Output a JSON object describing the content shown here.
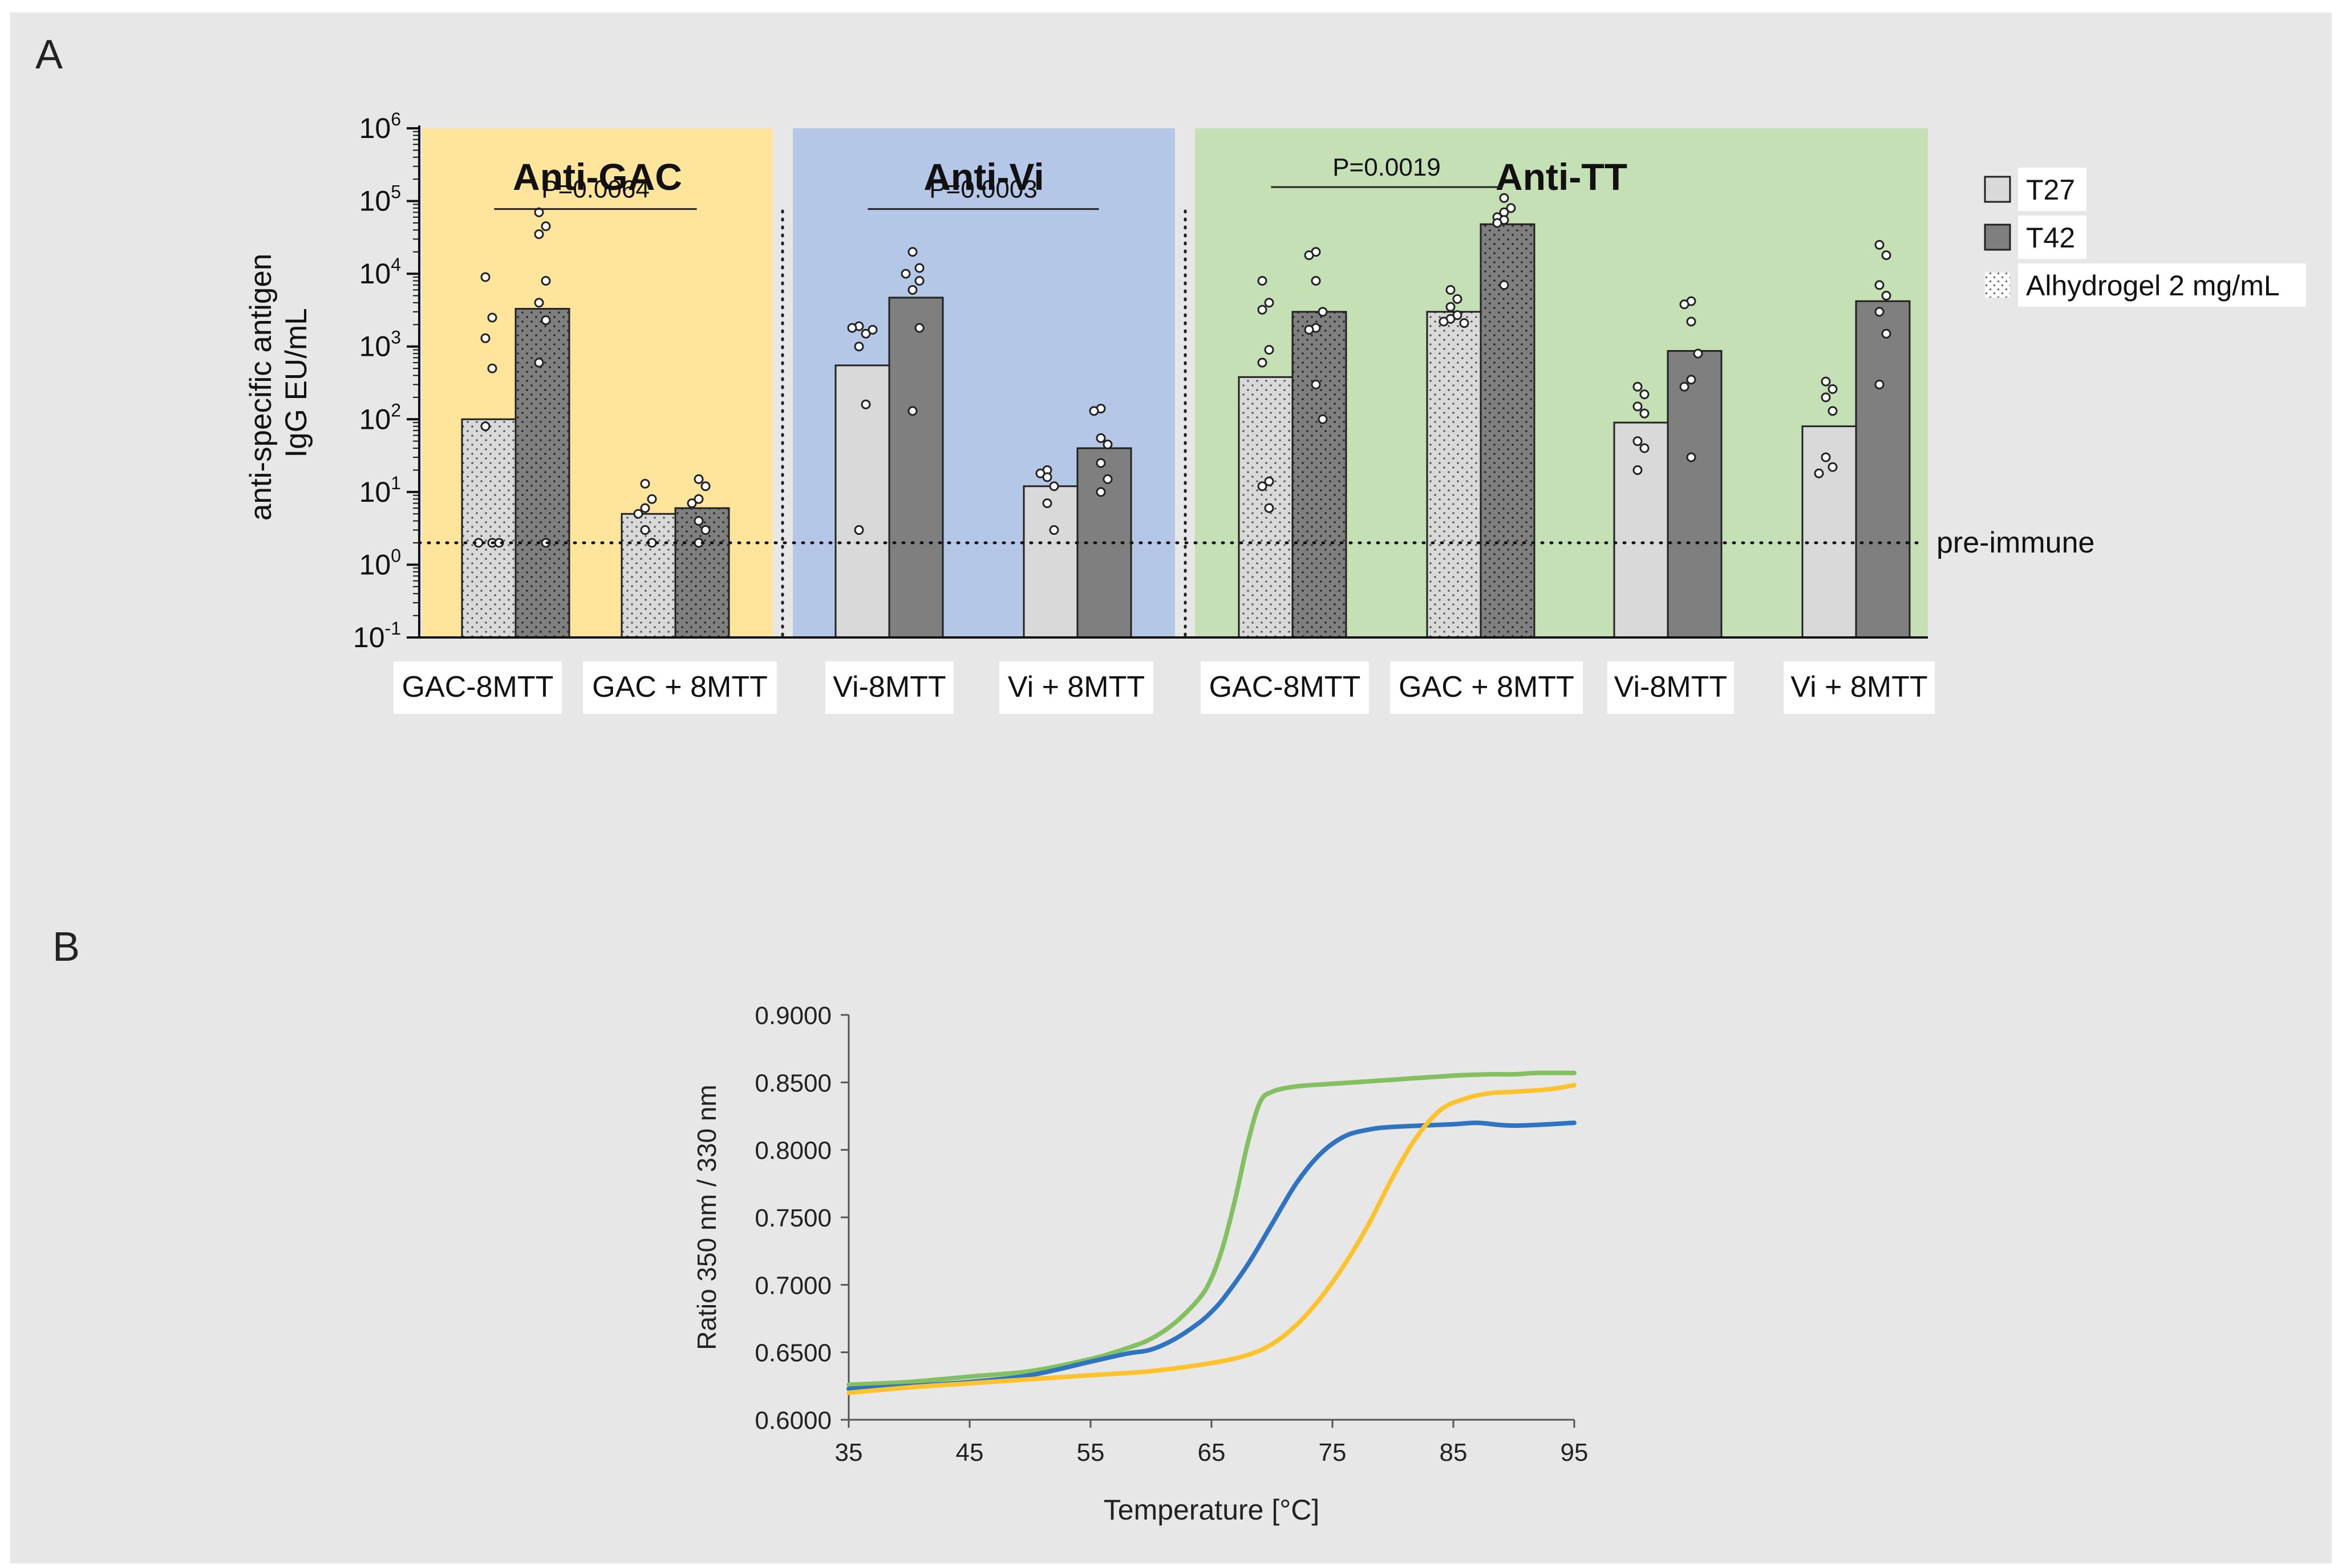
{
  "panel_a_label": "A",
  "panel_b_label": "B",
  "chart_data": [
    {
      "type": "bar",
      "id": "panel-a",
      "scale": "log",
      "ylabel_lines": [
        "anti-specific antigen",
        "IgG EU/mL"
      ],
      "ylim": [
        0.1,
        1000000
      ],
      "yticks": [
        {
          "value": 1000000,
          "base": "10",
          "exp": "6"
        },
        {
          "value": 100000,
          "base": "10",
          "exp": "5"
        },
        {
          "value": 10000,
          "base": "10",
          "exp": "4"
        },
        {
          "value": 1000,
          "base": "10",
          "exp": "3"
        },
        {
          "value": 100,
          "base": "10",
          "exp": "2"
        },
        {
          "value": 10,
          "base": "10",
          "exp": "1"
        },
        {
          "value": 1,
          "base": "10",
          "exp": "0"
        },
        {
          "value": 0.1,
          "base": "10",
          "exp": "-1"
        }
      ],
      "reference_line": {
        "value": 2,
        "label": "pre-immune"
      },
      "panels": [
        {
          "title": "Anti-GAC",
          "color": "#ffe49c"
        },
        {
          "title": "Anti-Vi",
          "color": "#b4c7e7"
        },
        {
          "title": "Anti-TT",
          "color": "#c5e0b4"
        }
      ],
      "legend": [
        {
          "label": "T27",
          "swatch": "T27"
        },
        {
          "label": "T42",
          "swatch": "T42"
        },
        {
          "label": "Alhydrogel 2 mg/mL",
          "swatch": "Alhydrogel"
        }
      ],
      "series_colors": {
        "T27": "#d9d9d9",
        "T42": "#7f7f7f"
      },
      "groups": [
        {
          "panel": 0,
          "label": "GAC-8MTT",
          "alhydrogel": true,
          "bars": [
            {
              "series": "T27",
              "value": 100,
              "points": [
                9000,
                2500,
                1300,
                500,
                80,
                2,
                2,
                2
              ]
            },
            {
              "series": "T42",
              "value": 3300,
              "points": [
                70000,
                45000,
                35000,
                8000,
                4000,
                2300,
                600,
                2
              ]
            }
          ]
        },
        {
          "panel": 0,
          "label": "GAC + 8MTT",
          "alhydrogel": true,
          "bars": [
            {
              "series": "T27",
              "value": 5,
              "points": [
                13,
                8,
                6,
                5,
                3,
                2
              ]
            },
            {
              "series": "T42",
              "value": 6,
              "points": [
                15,
                12,
                8,
                7,
                4,
                3,
                2
              ]
            }
          ]
        },
        {
          "panel": 1,
          "label": "Vi-8MTT",
          "alhydrogel": false,
          "bars": [
            {
              "series": "T27",
              "value": 550,
              "points": [
                1900,
                1800,
                1700,
                1500,
                1000,
                160,
                3
              ]
            },
            {
              "series": "T42",
              "value": 4700,
              "points": [
                20000,
                12000,
                10000,
                8000,
                6000,
                1800,
                130
              ]
            }
          ]
        },
        {
          "panel": 1,
          "label": "Vi + 8MTT",
          "alhydrogel": false,
          "bars": [
            {
              "series": "T27",
              "value": 12,
              "points": [
                20,
                18,
                16,
                12,
                7,
                3
              ]
            },
            {
              "series": "T42",
              "value": 40,
              "points": [
                140,
                130,
                55,
                45,
                25,
                15,
                10
              ]
            }
          ]
        },
        {
          "panel": 2,
          "label": "GAC-8MTT",
          "alhydrogel": true,
          "bars": [
            {
              "series": "T27",
              "value": 380,
              "points": [
                8000,
                4000,
                3200,
                900,
                600,
                14,
                12,
                6
              ]
            },
            {
              "series": "T42",
              "value": 3000,
              "points": [
                20000,
                18000,
                8000,
                3000,
                1800,
                1700,
                300,
                100
              ]
            }
          ]
        },
        {
          "panel": 2,
          "label": "GAC + 8MTT",
          "alhydrogel": true,
          "bars": [
            {
              "series": "T27",
              "value": 3000,
              "points": [
                6000,
                4500,
                3500,
                2700,
                2400,
                2200,
                2100
              ]
            },
            {
              "series": "T42",
              "value": 48000,
              "points": [
                110000,
                80000,
                70000,
                60000,
                55000,
                50000,
                7000
              ]
            }
          ]
        },
        {
          "panel": 2,
          "label": "Vi-8MTT",
          "alhydrogel": false,
          "bars": [
            {
              "series": "T27",
              "value": 90,
              "points": [
                280,
                220,
                150,
                120,
                50,
                40,
                20
              ]
            },
            {
              "series": "T42",
              "value": 870,
              "points": [
                4200,
                3800,
                2200,
                800,
                350,
                280,
                30
              ]
            }
          ]
        },
        {
          "panel": 2,
          "label": "Vi + 8MTT",
          "alhydrogel": false,
          "bars": [
            {
              "series": "T27",
              "value": 80,
              "points": [
                330,
                260,
                200,
                130,
                30,
                22,
                18
              ]
            },
            {
              "series": "T42",
              "value": 4200,
              "points": [
                25000,
                18000,
                7000,
                5000,
                3000,
                1500,
                300
              ]
            }
          ]
        }
      ],
      "comparisons": [
        {
          "panel": 0,
          "from_group": 0,
          "to_group": 1,
          "level": 100000,
          "label": "P=0.0064"
        },
        {
          "panel": 1,
          "from_group": 2,
          "to_group": 3,
          "level": 100000,
          "label": "P=0.0003"
        },
        {
          "panel": 2,
          "from_group": 4,
          "to_group": 5,
          "level": 200000,
          "label": "P=0.0019"
        }
      ]
    },
    {
      "type": "line",
      "id": "panel-b",
      "xlabel": "Temperature  [°C]",
      "ylabel": "Ratio 350 nm / 330 nm",
      "xlim": [
        35,
        95
      ],
      "ylim": [
        0.6,
        0.9
      ],
      "xticks": [
        {
          "value": 35,
          "label": "35"
        },
        {
          "value": 45,
          "label": "45"
        },
        {
          "value": 55,
          "label": "55"
        },
        {
          "value": 65,
          "label": "65"
        },
        {
          "value": 75,
          "label": "75"
        },
        {
          "value": 85,
          "label": "85"
        },
        {
          "value": 95,
          "label": "95"
        }
      ],
      "yticks": [
        {
          "value": 0.6,
          "label": "0.6000"
        },
        {
          "value": 0.65,
          "label": "0.6500"
        },
        {
          "value": 0.7,
          "label": "0.7000"
        },
        {
          "value": 0.75,
          "label": "0.7500"
        },
        {
          "value": 0.8,
          "label": "0.8000"
        },
        {
          "value": 0.85,
          "label": "0.8500"
        },
        {
          "value": 0.9,
          "label": "0.9000"
        }
      ],
      "series": [
        {
          "name": "green",
          "color": "#84c062",
          "x": [
            35,
            40,
            45,
            50,
            55,
            58,
            60,
            62,
            64,
            65,
            66,
            67,
            68,
            69,
            70,
            72,
            75,
            80,
            85,
            88,
            90,
            92,
            95
          ],
          "y": [
            0.626,
            0.628,
            0.632,
            0.636,
            0.645,
            0.653,
            0.66,
            0.672,
            0.69,
            0.705,
            0.73,
            0.765,
            0.805,
            0.835,
            0.843,
            0.847,
            0.849,
            0.852,
            0.855,
            0.856,
            0.856,
            0.857,
            0.857
          ]
        },
        {
          "name": "blue",
          "color": "#2e74c0",
          "x": [
            35,
            40,
            45,
            50,
            55,
            58,
            60,
            62,
            64,
            65,
            66,
            68,
            70,
            72,
            74,
            76,
            78,
            80,
            85,
            87,
            90,
            95
          ],
          "y": [
            0.623,
            0.625,
            0.628,
            0.633,
            0.643,
            0.649,
            0.652,
            0.66,
            0.672,
            0.68,
            0.69,
            0.715,
            0.745,
            0.775,
            0.797,
            0.81,
            0.815,
            0.817,
            0.819,
            0.82,
            0.818,
            0.82
          ]
        },
        {
          "name": "yellow",
          "color": "#fcc32c",
          "x": [
            35,
            40,
            45,
            50,
            55,
            60,
            65,
            68,
            70,
            72,
            74,
            76,
            78,
            80,
            82,
            84,
            86,
            88,
            90,
            93,
            95
          ],
          "y": [
            0.62,
            0.624,
            0.627,
            0.63,
            0.633,
            0.636,
            0.642,
            0.648,
            0.656,
            0.67,
            0.69,
            0.715,
            0.745,
            0.78,
            0.81,
            0.83,
            0.838,
            0.842,
            0.843,
            0.845,
            0.848
          ]
        }
      ]
    }
  ]
}
